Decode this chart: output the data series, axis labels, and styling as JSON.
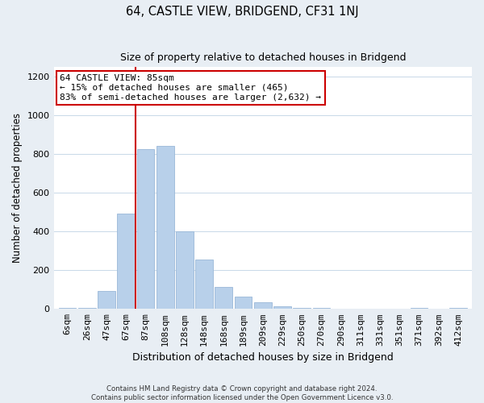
{
  "title": "64, CASTLE VIEW, BRIDGEND, CF31 1NJ",
  "subtitle": "Size of property relative to detached houses in Bridgend",
  "xlabel": "Distribution of detached houses by size in Bridgend",
  "ylabel": "Number of detached properties",
  "bar_labels": [
    "6sqm",
    "26sqm",
    "47sqm",
    "67sqm",
    "87sqm",
    "108sqm",
    "128sqm",
    "148sqm",
    "168sqm",
    "189sqm",
    "209sqm",
    "229sqm",
    "250sqm",
    "270sqm",
    "290sqm",
    "311sqm",
    "331sqm",
    "351sqm",
    "371sqm",
    "392sqm",
    "412sqm"
  ],
  "bar_values": [
    5,
    5,
    95,
    495,
    825,
    845,
    400,
    255,
    115,
    65,
    35,
    15,
    5,
    5,
    0,
    0,
    0,
    0,
    5,
    0,
    5
  ],
  "bar_color": "#b8d0ea",
  "bar_edge_color": "#9ab8d8",
  "vline_x_idx": 4,
  "vline_color": "#cc0000",
  "annotation_title": "64 CASTLE VIEW: 85sqm",
  "annotation_line1": "← 15% of detached houses are smaller (465)",
  "annotation_line2": "83% of semi-detached houses are larger (2,632) →",
  "annotation_box_facecolor": "#ffffff",
  "annotation_box_edgecolor": "#cc0000",
  "ylim": [
    0,
    1250
  ],
  "yticks": [
    0,
    200,
    400,
    600,
    800,
    1000,
    1200
  ],
  "footer_line1": "Contains HM Land Registry data © Crown copyright and database right 2024.",
  "footer_line2": "Contains public sector information licensed under the Open Government Licence v3.0.",
  "bg_color": "#e8eef4",
  "plot_bg_color": "#ffffff",
  "grid_color": "#c8d8e8"
}
